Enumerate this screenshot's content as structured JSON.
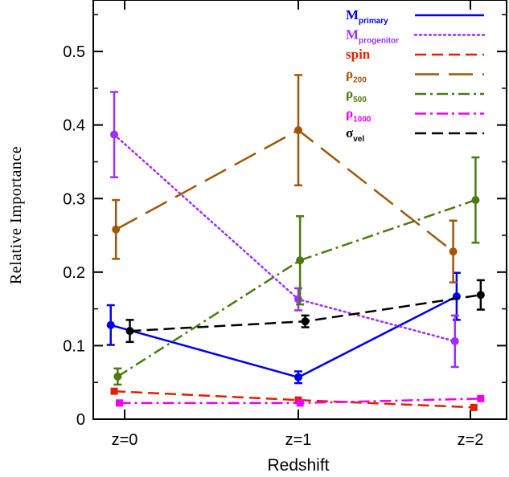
{
  "chart_data": {
    "type": "line",
    "xlabel": "Redshift",
    "ylabel": "Relative Importance",
    "categories": [
      "z=0",
      "z=1",
      "z=2"
    ],
    "ylim": [
      0,
      0.57
    ],
    "yticks": [
      0,
      0.1,
      0.2,
      0.3,
      0.4,
      0.5
    ],
    "ytick_labels": [
      "0",
      "0.1",
      "0.2",
      "0.3",
      "0.4",
      "0.5"
    ],
    "legend_position": "top-right",
    "series": [
      {
        "key": "mprimary",
        "name": "M",
        "sub": "primary",
        "color": "#0000ee",
        "dash": "solid",
        "marker": "circle",
        "x": [
          -0.08,
          1.0,
          1.92
        ],
        "values": [
          0.128,
          0.057,
          0.167
        ],
        "err": [
          0.027,
          0.008,
          0.032
        ]
      },
      {
        "key": "mprogenitor",
        "name": "M",
        "sub": "progenitor",
        "color": "#9b30ff",
        "dash": "dotted",
        "marker": "circle",
        "x": [
          -0.06,
          1.0,
          1.91
        ],
        "values": [
          0.387,
          0.163,
          0.106
        ],
        "err": [
          0.058,
          0.015,
          0.035
        ]
      },
      {
        "key": "spin",
        "name": "spin",
        "sub": "",
        "color": "#dd2200",
        "dash": "dashed",
        "marker": "square",
        "x": [
          -0.06,
          1.0,
          2.02
        ],
        "values": [
          0.038,
          0.026,
          0.016
        ],
        "err": [
          0,
          0,
          0
        ]
      },
      {
        "key": "rho200",
        "name": "ρ",
        "sub": "200",
        "color": "#a0560a",
        "dash": "longdash",
        "marker": "circle",
        "x": [
          -0.05,
          1.0,
          1.9
        ],
        "values": [
          0.258,
          0.393,
          0.228
        ],
        "err": [
          0.04,
          0.075,
          0.042
        ]
      },
      {
        "key": "rho500",
        "name": "ρ",
        "sub": "500",
        "color": "#4a7a10",
        "dash": "dashdot",
        "marker": "circle",
        "x": [
          -0.04,
          1.01,
          2.03
        ],
        "values": [
          0.058,
          0.216,
          0.298
        ],
        "err": [
          0.011,
          0.06,
          0.058
        ]
      },
      {
        "key": "rho1000",
        "name": "ρ",
        "sub": "1000",
        "color": "#ee00ee",
        "dash": "dashdot",
        "marker": "square",
        "x": [
          -0.03,
          1.01,
          2.06
        ],
        "values": [
          0.022,
          0.022,
          0.028
        ],
        "err": [
          0,
          0,
          0
        ]
      },
      {
        "key": "sigmavel",
        "name": "σ",
        "sub": "vel",
        "color": "#000000",
        "dash": "dashed",
        "marker": "circle",
        "x": [
          0.03,
          1.04,
          2.06
        ],
        "values": [
          0.12,
          0.133,
          0.169
        ],
        "err": [
          0.015,
          0.008,
          0.02
        ]
      }
    ]
  }
}
